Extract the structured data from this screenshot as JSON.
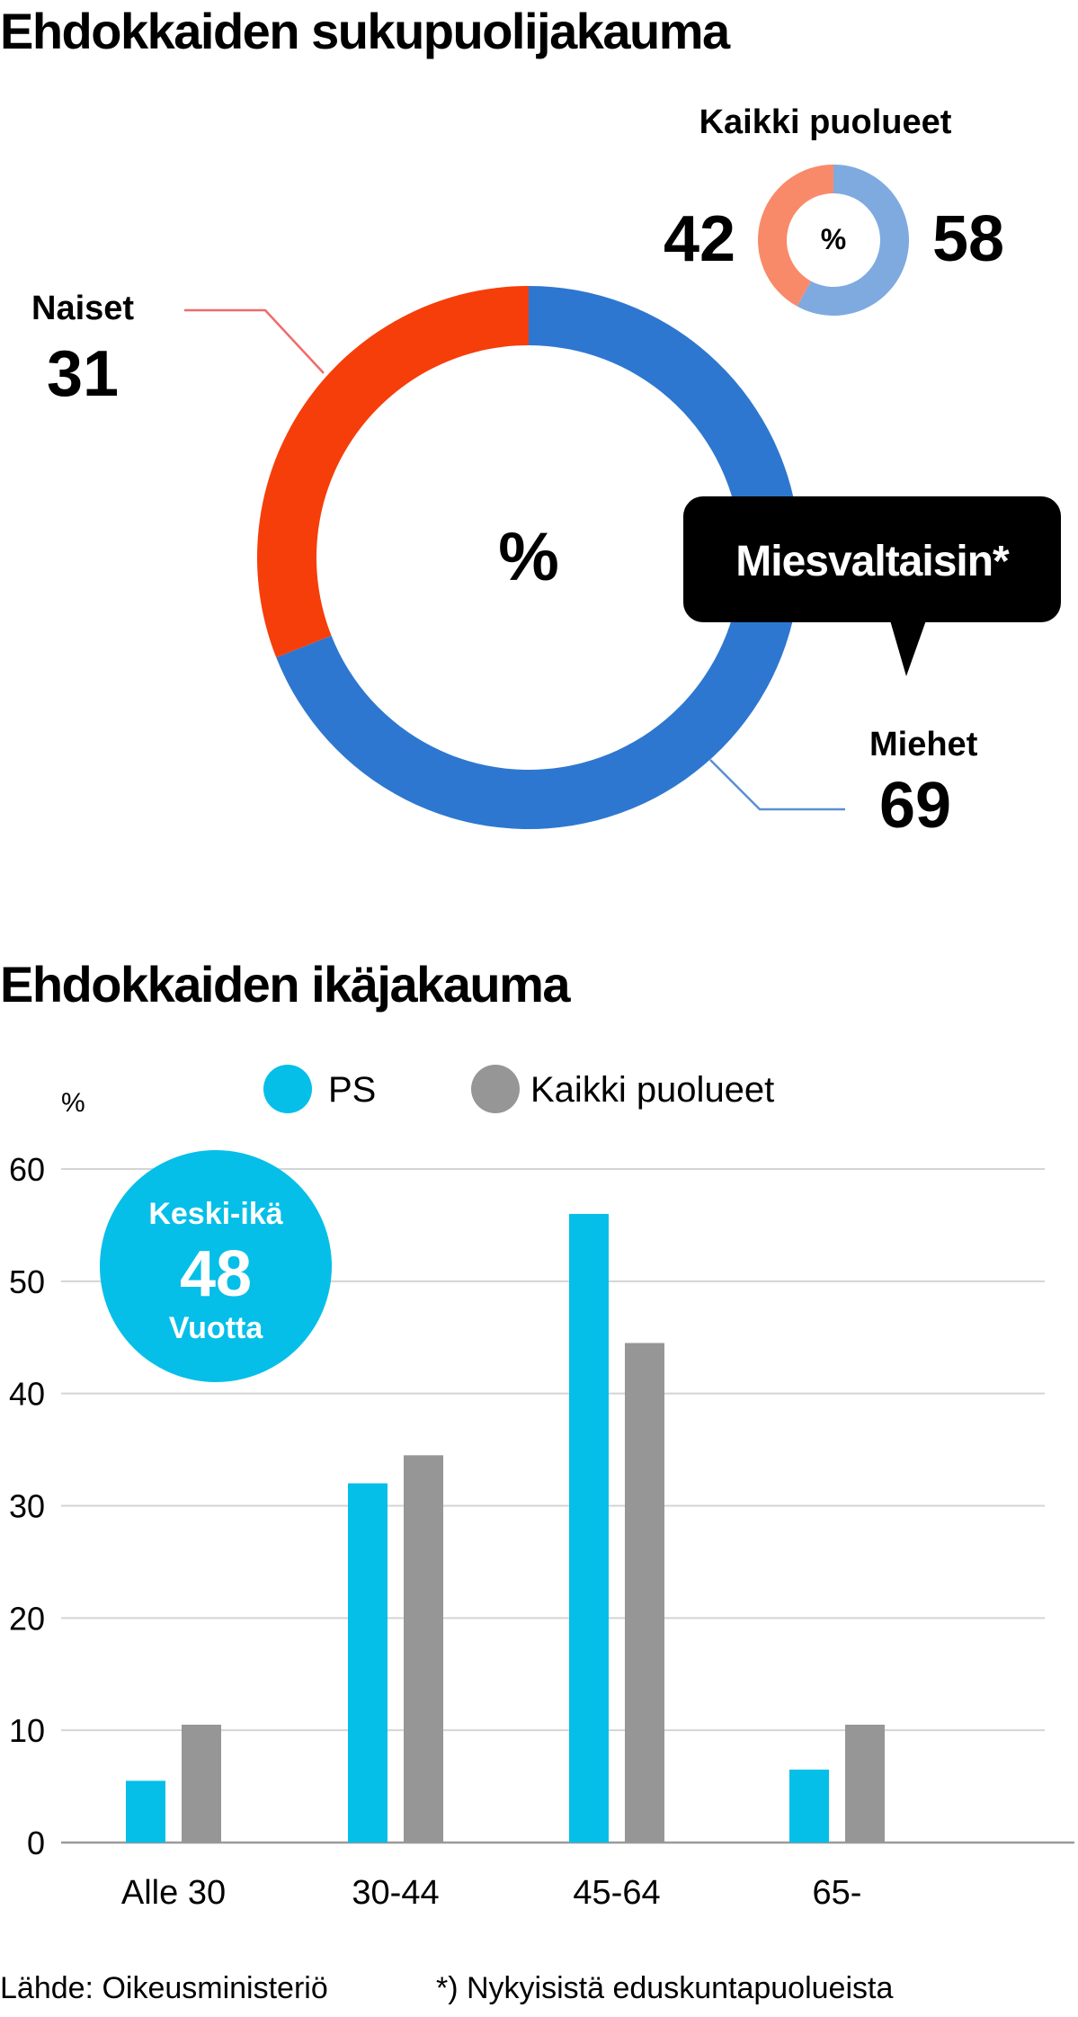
{
  "chart_data": [
    {
      "type": "pie",
      "title": "Ehdokkaiden sukupuolijakauma",
      "center_label": "%",
      "slices": [
        {
          "label": "Miehet",
          "value": 69,
          "color": "#2e77d0"
        },
        {
          "label": "Naiset",
          "value": 31,
          "color": "#f63e0a"
        }
      ],
      "callout": "Miesvaltaisin*",
      "inset": {
        "title": "Kaikki puolueet",
        "center_label": "%",
        "slices": [
          {
            "label": "Miehet",
            "value": 58,
            "color": "#7eaae0"
          },
          {
            "label": "Naiset",
            "value": 42,
            "color": "#f88a6a"
          }
        ]
      }
    },
    {
      "type": "bar",
      "title": "Ehdokkaiden ikäjakauma",
      "ylabel": "%",
      "ylim": [
        0,
        60
      ],
      "yticks": [
        0,
        10,
        20,
        30,
        40,
        50,
        60
      ],
      "categories": [
        "Alle 30",
        "30-44",
        "45-64",
        "65-"
      ],
      "series": [
        {
          "name": "PS",
          "color": "#05bfe8",
          "values": [
            5.5,
            32,
            56,
            6.5
          ]
        },
        {
          "name": "Kaikki puolueet",
          "color": "#969696",
          "values": [
            10.5,
            34.5,
            44.5,
            10.5
          ]
        }
      ],
      "badge": {
        "top": "Keski-ikä",
        "value": "48",
        "bottom": "Vuotta"
      }
    }
  ],
  "footer": {
    "source": "Lähde: Oikeusministeriö",
    "note": "*) Nykyisistä eduskuntapuolueista"
  }
}
